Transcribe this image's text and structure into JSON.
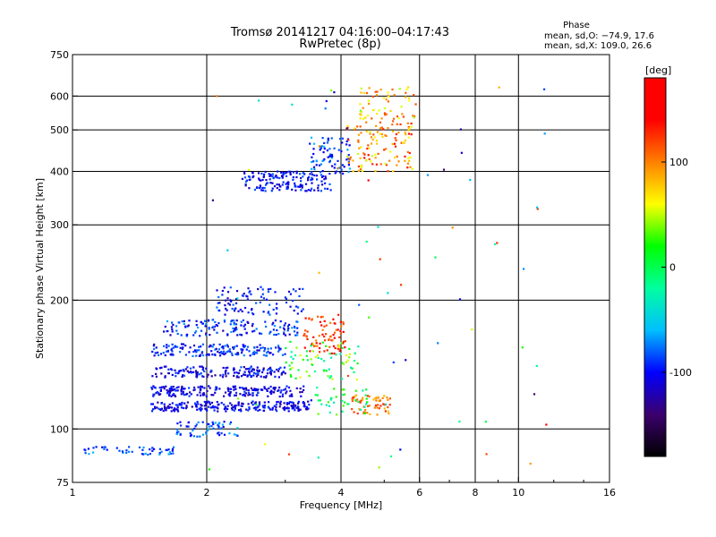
{
  "chart_data": {
    "type": "scatter",
    "title": "Tromsø 20141217 04:16:00–04:17:43",
    "subtitle": "RwPretec (8p)",
    "xlabel": "Frequency [MHz]",
    "ylabel": "Stationary phase Virtual Height [km]",
    "x_scale": "log",
    "y_scale": "log",
    "xlim": [
      1,
      16
    ],
    "ylim": [
      75,
      750
    ],
    "x_ticks": [
      1,
      2,
      4,
      6,
      8,
      10,
      16
    ],
    "x_tick_labels": [
      "1",
      "2",
      "4",
      "6",
      "8",
      "10",
      "16"
    ],
    "x_grid": [
      2,
      4,
      6,
      8,
      10
    ],
    "y_ticks": [
      75,
      100,
      200,
      300,
      400,
      500,
      600,
      750
    ],
    "y_tick_labels": [
      "75",
      "100",
      "200",
      "300",
      "400",
      "500",
      "600",
      "750"
    ],
    "y_grid": [
      100,
      200,
      300,
      400,
      500,
      600
    ],
    "grid": true,
    "stats": {
      "title": "Phase",
      "line_o": "mean, sd,O: −74.9, 17.6",
      "line_x": "mean, sd,X: 109.0, 26.6"
    },
    "colorbar": {
      "label": "[deg]",
      "range": [
        -180,
        180
      ],
      "ticks": [
        100,
        0,
        -100
      ],
      "tick_labels": [
        "100",
        "0",
        "-100"
      ],
      "colors": [
        "#000000",
        "#3c006e",
        "#0000ff",
        "#00bfff",
        "#00ffa0",
        "#00ff00",
        "#ffff00",
        "#ff8000",
        "#ff0000",
        "#ff0000"
      ]
    },
    "clusters": [
      {
        "x": [
          1.05,
          1.7
        ],
        "y": [
          87,
          91
        ],
        "n": 50,
        "phase": [
          -110,
          -60
        ]
      },
      {
        "x": [
          1.5,
          3.4
        ],
        "y": [
          110,
          116
        ],
        "n": 220,
        "phase": [
          -125,
          -85
        ]
      },
      {
        "x": [
          1.5,
          3.3
        ],
        "y": [
          119,
          126
        ],
        "n": 200,
        "phase": [
          -130,
          -85
        ]
      },
      {
        "x": [
          1.5,
          3.0
        ],
        "y": [
          132,
          140
        ],
        "n": 160,
        "phase": [
          -130,
          -80
        ]
      },
      {
        "x": [
          1.5,
          3.0
        ],
        "y": [
          148,
          158
        ],
        "n": 160,
        "phase": [
          -120,
          -70
        ]
      },
      {
        "x": [
          1.6,
          3.2
        ],
        "y": [
          165,
          180
        ],
        "n": 140,
        "phase": [
          -125,
          -65
        ]
      },
      {
        "x": [
          2.1,
          3.3
        ],
        "y": [
          185,
          215
        ],
        "n": 90,
        "phase": [
          -120,
          -75
        ]
      },
      {
        "x": [
          1.7,
          2.4
        ],
        "y": [
          96,
          104
        ],
        "n": 60,
        "phase": [
          -110,
          -60
        ]
      },
      {
        "x": [
          3.3,
          4.1
        ],
        "y": [
          150,
          185
        ],
        "n": 80,
        "phase": [
          100,
          160
        ]
      },
      {
        "x": [
          3.0,
          4.4
        ],
        "y": [
          130,
          160
        ],
        "n": 70,
        "phase": [
          -40,
          60
        ]
      },
      {
        "x": [
          4.2,
          5.2
        ],
        "y": [
          108,
          120
        ],
        "n": 60,
        "phase": [
          80,
          130
        ]
      },
      {
        "x": [
          3.5,
          4.6
        ],
        "y": [
          108,
          125
        ],
        "n": 40,
        "phase": [
          -40,
          40
        ]
      },
      {
        "x": [
          2.4,
          3.8
        ],
        "y": [
          360,
          400
        ],
        "n": 160,
        "phase": [
          -120,
          -80
        ]
      },
      {
        "x": [
          3.4,
          4.2
        ],
        "y": [
          395,
          480
        ],
        "n": 80,
        "phase": [
          -110,
          -60
        ]
      },
      {
        "x": [
          4.1,
          5.8
        ],
        "y": [
          400,
          520
        ],
        "n": 120,
        "phase": [
          50,
          140
        ]
      },
      {
        "x": [
          4.4,
          5.9
        ],
        "y": [
          520,
          630
        ],
        "n": 60,
        "phase": [
          40,
          120
        ]
      },
      {
        "x": [
          2.0,
          12.5
        ],
        "y": [
          78,
          640
        ],
        "n": 70,
        "phase": [
          -150,
          150
        ]
      }
    ]
  }
}
